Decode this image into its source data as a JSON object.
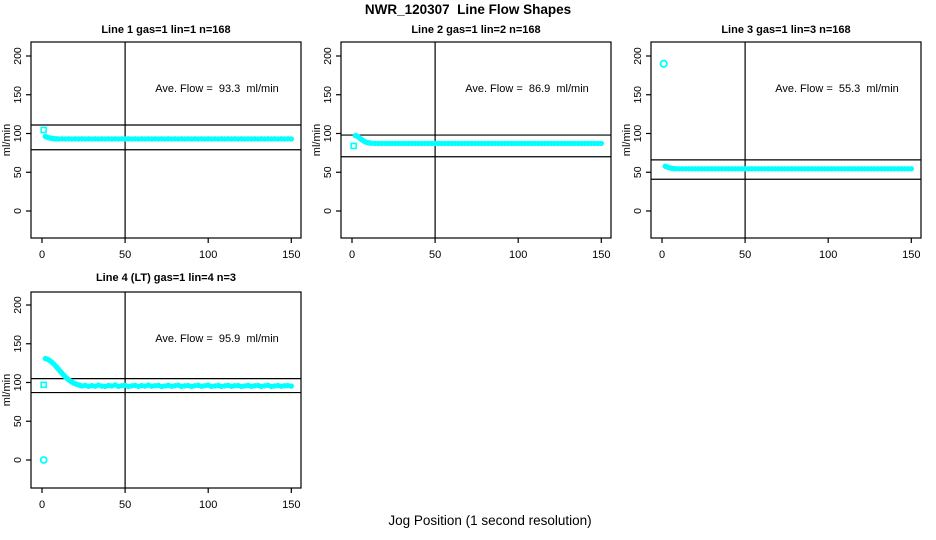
{
  "main_title": "NWR_120307  Line Flow Shapes",
  "x_axis_label": "Jog Position (1 second resolution)",
  "y_axis_label": "ml/min",
  "colors": {
    "points": "#00FFFF",
    "axis": "#000000",
    "background": "#FFFFFF"
  },
  "axes": {
    "x_ticks": [
      0,
      50,
      100,
      150
    ],
    "y_ticks": [
      0,
      50,
      100,
      150,
      200
    ],
    "xlim": [
      0,
      150
    ],
    "ylim": [
      0,
      200
    ],
    "vline_x": 50
  },
  "chart_data": [
    {
      "type": "scatter",
      "title": "Line 1 gas=1 lin=1 n=168",
      "annotation": "Ave. Flow =  93.3  ml/min",
      "ave_flow": 93.3,
      "ref_upper": 111,
      "ref_lower": 79,
      "vline_x": 50,
      "outliers": [
        {
          "x": 1,
          "y": 104.5,
          "marker": "square",
          "size": 5
        }
      ],
      "points": [
        [
          2,
          96.2
        ],
        [
          3,
          95.3
        ],
        [
          4,
          94.6
        ],
        [
          5,
          94.1
        ],
        [
          6,
          93.7
        ],
        [
          7,
          93.4
        ],
        [
          8,
          93.2
        ],
        [
          9,
          93.1
        ],
        [
          10,
          93.0
        ],
        [
          12,
          93.1
        ],
        [
          14,
          93.0
        ],
        [
          16,
          93.1
        ],
        [
          18,
          93.0
        ],
        [
          20,
          93.1
        ],
        [
          22,
          93.0
        ],
        [
          24,
          93.1
        ],
        [
          26,
          93.0
        ],
        [
          28,
          93.1
        ],
        [
          30,
          93.0
        ],
        [
          32,
          93.1
        ],
        [
          34,
          93.0
        ],
        [
          36,
          93.1
        ],
        [
          38,
          93.0
        ],
        [
          40,
          93.1
        ],
        [
          42,
          93.0
        ],
        [
          44,
          93.1
        ],
        [
          46,
          93.0
        ],
        [
          48,
          93.1
        ],
        [
          50,
          93.0
        ],
        [
          52,
          93.1
        ],
        [
          54,
          93.0
        ],
        [
          56,
          93.1
        ],
        [
          58,
          93.0
        ],
        [
          60,
          93.1
        ],
        [
          62,
          93.0
        ],
        [
          64,
          93.1
        ],
        [
          66,
          93.0
        ],
        [
          68,
          93.1
        ],
        [
          70,
          93.0
        ],
        [
          72,
          93.1
        ],
        [
          74,
          93.0
        ],
        [
          76,
          93.1
        ],
        [
          78,
          93.0
        ],
        [
          80,
          93.1
        ],
        [
          82,
          93.0
        ],
        [
          84,
          93.1
        ],
        [
          86,
          93.0
        ],
        [
          88,
          93.1
        ],
        [
          90,
          93.0
        ],
        [
          92,
          93.1
        ],
        [
          94,
          93.0
        ],
        [
          96,
          93.1
        ],
        [
          98,
          93.0
        ],
        [
          100,
          93.1
        ],
        [
          102,
          93.0
        ],
        [
          104,
          93.1
        ],
        [
          106,
          93.0
        ],
        [
          108,
          93.1
        ],
        [
          110,
          93.0
        ],
        [
          112,
          93.1
        ],
        [
          114,
          93.0
        ],
        [
          116,
          93.1
        ],
        [
          118,
          93.0
        ],
        [
          120,
          93.1
        ],
        [
          122,
          93.0
        ],
        [
          124,
          93.1
        ],
        [
          126,
          93.0
        ],
        [
          128,
          93.1
        ],
        [
          130,
          93.0
        ],
        [
          132,
          93.1
        ],
        [
          134,
          93.0
        ],
        [
          136,
          93.1
        ],
        [
          138,
          93.0
        ],
        [
          140,
          93.1
        ],
        [
          142,
          93.0
        ],
        [
          144,
          93.1
        ],
        [
          146,
          93.0
        ],
        [
          148,
          93.1
        ],
        [
          150,
          93.0
        ]
      ]
    },
    {
      "type": "scatter",
      "title": "Line 2 gas=1 lin=2 n=168",
      "annotation": "Ave. Flow =  86.9  ml/min",
      "ave_flow": 86.9,
      "ref_upper": 98,
      "ref_lower": 70,
      "vline_x": 50,
      "outliers": [
        {
          "x": 1,
          "y": 84,
          "marker": "square",
          "size": 5
        }
      ],
      "points": [
        [
          2,
          97.3
        ],
        [
          3,
          96.6
        ],
        [
          4,
          95.2
        ],
        [
          5,
          93.4
        ],
        [
          6,
          91.8
        ],
        [
          7,
          90.4
        ],
        [
          8,
          89.3
        ],
        [
          9,
          88.5
        ],
        [
          10,
          88.0
        ],
        [
          11,
          87.6
        ],
        [
          12,
          87.4
        ],
        [
          14,
          87.2
        ],
        [
          16,
          87.2
        ],
        [
          18,
          87.2
        ],
        [
          20,
          87.2
        ],
        [
          22,
          87.2
        ],
        [
          24,
          87.2
        ],
        [
          26,
          87.2
        ],
        [
          28,
          87.2
        ],
        [
          30,
          87.2
        ],
        [
          32,
          87.2
        ],
        [
          34,
          87.2
        ],
        [
          36,
          87.2
        ],
        [
          38,
          87.2
        ],
        [
          40,
          87.2
        ],
        [
          42,
          87.2
        ],
        [
          44,
          87.2
        ],
        [
          46,
          87.2
        ],
        [
          48,
          87.2
        ],
        [
          50,
          87.2
        ],
        [
          52,
          87.2
        ],
        [
          54,
          87.2
        ],
        [
          56,
          87.2
        ],
        [
          58,
          87.2
        ],
        [
          60,
          87.2
        ],
        [
          62,
          87.2
        ],
        [
          64,
          87.2
        ],
        [
          66,
          87.2
        ],
        [
          68,
          87.2
        ],
        [
          70,
          87.2
        ],
        [
          72,
          87.2
        ],
        [
          74,
          87.2
        ],
        [
          76,
          87.2
        ],
        [
          78,
          87.2
        ],
        [
          80,
          87.2
        ],
        [
          82,
          87.2
        ],
        [
          84,
          87.2
        ],
        [
          86,
          87.2
        ],
        [
          88,
          87.2
        ],
        [
          90,
          87.2
        ],
        [
          92,
          87.2
        ],
        [
          94,
          87.2
        ],
        [
          96,
          87.2
        ],
        [
          98,
          87.2
        ],
        [
          100,
          87.2
        ],
        [
          102,
          87.2
        ],
        [
          104,
          87.2
        ],
        [
          106,
          87.2
        ],
        [
          108,
          87.2
        ],
        [
          110,
          87.2
        ],
        [
          112,
          87.2
        ],
        [
          114,
          87.2
        ],
        [
          116,
          87.2
        ],
        [
          118,
          87.2
        ],
        [
          120,
          87.2
        ],
        [
          122,
          87.2
        ],
        [
          124,
          87.2
        ],
        [
          126,
          87.2
        ],
        [
          128,
          87.2
        ],
        [
          130,
          87.2
        ],
        [
          132,
          87.2
        ],
        [
          134,
          87.2
        ],
        [
          136,
          87.2
        ],
        [
          138,
          87.2
        ],
        [
          140,
          87.2
        ],
        [
          142,
          87.2
        ],
        [
          144,
          87.2
        ],
        [
          146,
          87.2
        ],
        [
          148,
          87.2
        ],
        [
          150,
          87.2
        ]
      ]
    },
    {
      "type": "scatter",
      "title": "Line 3 gas=1 lin=3 n=168",
      "annotation": "Ave. Flow =  55.3  ml/min",
      "ave_flow": 55.3,
      "ref_upper": 66,
      "ref_lower": 41,
      "vline_x": 50,
      "outliers": [
        {
          "x": 1,
          "y": 190,
          "marker": "circle",
          "size": 6.5
        }
      ],
      "points": [
        [
          2,
          57.8
        ],
        [
          3,
          56.9
        ],
        [
          4,
          56.1
        ],
        [
          5,
          55.5
        ],
        [
          6,
          55.1
        ],
        [
          7,
          54.8
        ],
        [
          8,
          54.6
        ],
        [
          10,
          54.5
        ],
        [
          12,
          54.5
        ],
        [
          14,
          54.5
        ],
        [
          16,
          54.5
        ],
        [
          18,
          54.5
        ],
        [
          20,
          54.5
        ],
        [
          22,
          54.5
        ],
        [
          24,
          54.5
        ],
        [
          26,
          54.5
        ],
        [
          28,
          54.5
        ],
        [
          30,
          54.5
        ],
        [
          32,
          54.5
        ],
        [
          34,
          54.5
        ],
        [
          36,
          54.5
        ],
        [
          38,
          54.5
        ],
        [
          40,
          54.5
        ],
        [
          42,
          54.5
        ],
        [
          44,
          54.5
        ],
        [
          46,
          54.5
        ],
        [
          48,
          54.5
        ],
        [
          50,
          54.5
        ],
        [
          52,
          54.5
        ],
        [
          54,
          54.5
        ],
        [
          56,
          54.5
        ],
        [
          58,
          54.5
        ],
        [
          60,
          54.5
        ],
        [
          62,
          54.5
        ],
        [
          64,
          54.5
        ],
        [
          66,
          54.5
        ],
        [
          68,
          54.5
        ],
        [
          70,
          54.5
        ],
        [
          72,
          54.5
        ],
        [
          74,
          54.5
        ],
        [
          76,
          54.5
        ],
        [
          78,
          54.5
        ],
        [
          80,
          54.5
        ],
        [
          82,
          54.5
        ],
        [
          84,
          54.5
        ],
        [
          86,
          54.5
        ],
        [
          88,
          54.5
        ],
        [
          90,
          54.5
        ],
        [
          92,
          54.5
        ],
        [
          94,
          54.5
        ],
        [
          96,
          54.5
        ],
        [
          98,
          54.5
        ],
        [
          100,
          54.5
        ],
        [
          102,
          54.5
        ],
        [
          104,
          54.5
        ],
        [
          106,
          54.5
        ],
        [
          108,
          54.5
        ],
        [
          110,
          54.5
        ],
        [
          112,
          54.5
        ],
        [
          114,
          54.5
        ],
        [
          116,
          54.5
        ],
        [
          118,
          54.5
        ],
        [
          120,
          54.5
        ],
        [
          122,
          54.5
        ],
        [
          124,
          54.5
        ],
        [
          126,
          54.5
        ],
        [
          128,
          54.5
        ],
        [
          130,
          54.5
        ],
        [
          132,
          54.5
        ],
        [
          134,
          54.5
        ],
        [
          136,
          54.5
        ],
        [
          138,
          54.5
        ],
        [
          140,
          54.5
        ],
        [
          142,
          54.5
        ],
        [
          144,
          54.5
        ],
        [
          146,
          54.5
        ],
        [
          148,
          54.5
        ],
        [
          150,
          54.5
        ]
      ]
    },
    {
      "type": "scatter",
      "title": "Line 4 (LT) gas=1 lin=4 n=3",
      "annotation": "Ave. Flow =  95.9  ml/min",
      "ave_flow": 95.9,
      "ref_upper": 105,
      "ref_lower": 87,
      "vline_x": 50,
      "outliers": [
        {
          "x": 1,
          "y": 0,
          "marker": "circle",
          "size": 6
        },
        {
          "x": 1,
          "y": 97,
          "marker": "square",
          "size": 5
        }
      ],
      "points": [
        [
          2,
          131
        ],
        [
          3,
          130.3
        ],
        [
          4,
          129.2
        ],
        [
          5,
          127.8
        ],
        [
          6,
          126.0
        ],
        [
          7,
          124.0
        ],
        [
          8,
          121.8
        ],
        [
          9,
          119.4
        ],
        [
          10,
          117.0
        ],
        [
          11,
          114.5
        ],
        [
          12,
          112.0
        ],
        [
          13,
          109.6
        ],
        [
          14,
          107.4
        ],
        [
          15,
          105.4
        ],
        [
          16,
          103.6
        ],
        [
          17,
          102.0
        ],
        [
          18,
          100.6
        ],
        [
          19,
          99.4
        ],
        [
          20,
          98.4
        ],
        [
          21,
          97.6
        ],
        [
          22,
          96.9
        ],
        [
          23,
          96.3
        ],
        [
          24,
          95.6
        ],
        [
          26,
          96.4
        ],
        [
          28,
          95.0
        ],
        [
          30,
          96.0
        ],
        [
          32,
          95.2
        ],
        [
          34,
          96.6
        ],
        [
          36,
          95.4
        ],
        [
          38,
          94.9
        ],
        [
          40,
          96.2
        ],
        [
          42,
          95.6
        ],
        [
          44,
          96.8
        ],
        [
          46,
          95.1
        ],
        [
          48,
          95.9
        ],
        [
          50,
          96.4
        ],
        [
          52,
          94.9
        ],
        [
          54,
          95.7
        ],
        [
          56,
          96.3
        ],
        [
          58,
          95.0
        ],
        [
          60,
          96.0
        ],
        [
          62,
          95.4
        ],
        [
          64,
          96.6
        ],
        [
          66,
          95.2
        ],
        [
          68,
          95.8
        ],
        [
          70,
          96.2
        ],
        [
          72,
          94.8
        ],
        [
          74,
          95.6
        ],
        [
          76,
          96.4
        ],
        [
          78,
          95.1
        ],
        [
          80,
          95.9
        ],
        [
          82,
          96.5
        ],
        [
          84,
          95.0
        ],
        [
          86,
          95.7
        ],
        [
          88,
          96.1
        ],
        [
          90,
          94.9
        ],
        [
          92,
          95.8
        ],
        [
          94,
          96.3
        ],
        [
          96,
          95.2
        ],
        [
          98,
          95.9
        ],
        [
          100,
          96.5
        ],
        [
          102,
          95.0
        ],
        [
          104,
          95.6
        ],
        [
          106,
          96.2
        ],
        [
          108,
          94.9
        ],
        [
          110,
          95.7
        ],
        [
          112,
          96.4
        ],
        [
          114,
          95.1
        ],
        [
          116,
          95.8
        ],
        [
          118,
          96.0
        ],
        [
          120,
          94.9
        ],
        [
          122,
          95.6
        ],
        [
          124,
          96.3
        ],
        [
          126,
          95.0
        ],
        [
          128,
          95.8
        ],
        [
          130,
          96.2
        ],
        [
          132,
          95.1
        ],
        [
          134,
          95.7
        ],
        [
          136,
          96.4
        ],
        [
          138,
          94.9
        ],
        [
          140,
          95.5
        ],
        [
          142,
          96.1
        ],
        [
          144,
          95.2
        ],
        [
          146,
          95.8
        ],
        [
          148,
          96.0
        ],
        [
          150,
          95.4
        ]
      ]
    }
  ]
}
